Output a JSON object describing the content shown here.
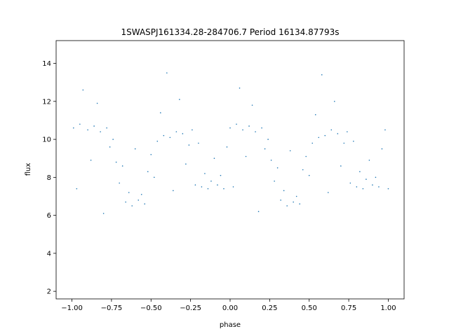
{
  "chart_data": {
    "type": "scatter",
    "title": "1SWASPJ161334.28-284706.7 Period 16134.87793s",
    "xlabel": "phase",
    "ylabel": "flux",
    "xlim": [
      -1.1,
      1.1
    ],
    "ylim": [
      1.6,
      15.2
    ],
    "x_ticks": [
      -1.0,
      -0.75,
      -0.5,
      -0.25,
      0.0,
      0.25,
      0.5,
      0.75,
      1.0
    ],
    "x_tick_labels": [
      "−1.00",
      "−0.75",
      "−0.50",
      "−0.25",
      "0.00",
      "0.25",
      "0.50",
      "0.75",
      "1.00"
    ],
    "y_ticks": [
      2,
      4,
      6,
      8,
      10,
      12,
      14
    ],
    "y_tick_labels": [
      "2",
      "4",
      "6",
      "8",
      "10",
      "12",
      "14"
    ],
    "grid": false,
    "point_color": "#1f77b4",
    "series": [
      {
        "phase_range": [
          -1.0,
          1.0
        ],
        "points": [
          [
            -0.99,
            10.6
          ],
          [
            -0.97,
            7.4
          ],
          [
            -0.95,
            10.8
          ],
          [
            -0.93,
            12.6
          ],
          [
            -0.9,
            10.5
          ],
          [
            -0.88,
            8.9
          ],
          [
            -0.86,
            10.7
          ],
          [
            -0.84,
            11.9
          ],
          [
            -0.82,
            10.4
          ],
          [
            -0.8,
            6.1
          ],
          [
            -0.78,
            10.6
          ],
          [
            -0.76,
            9.6
          ],
          [
            -0.74,
            10.0
          ],
          [
            -0.72,
            8.8
          ],
          [
            -0.7,
            7.7
          ],
          [
            -0.68,
            8.6
          ],
          [
            -0.66,
            6.7
          ],
          [
            -0.64,
            7.2
          ],
          [
            -0.62,
            6.5
          ],
          [
            -0.6,
            9.5
          ],
          [
            -0.58,
            6.8
          ],
          [
            -0.56,
            7.1
          ],
          [
            -0.54,
            6.6
          ],
          [
            -0.52,
            8.3
          ],
          [
            -0.5,
            9.2
          ],
          [
            -0.48,
            8.0
          ],
          [
            -0.46,
            9.9
          ],
          [
            -0.44,
            11.4
          ],
          [
            -0.42,
            10.2
          ],
          [
            -0.4,
            13.5
          ],
          [
            -0.38,
            10.1
          ],
          [
            -0.36,
            7.3
          ],
          [
            -0.34,
            10.4
          ],
          [
            -0.32,
            12.1
          ],
          [
            -0.3,
            10.3
          ],
          [
            -0.28,
            8.7
          ],
          [
            -0.26,
            9.7
          ],
          [
            -0.24,
            10.5
          ],
          [
            -0.22,
            7.6
          ],
          [
            -0.2,
            9.8
          ],
          [
            -0.18,
            7.5
          ],
          [
            -0.16,
            8.2
          ],
          [
            -0.14,
            7.4
          ],
          [
            -0.12,
            7.8
          ],
          [
            -0.1,
            9.0
          ],
          [
            -0.08,
            7.6
          ],
          [
            -0.06,
            8.1
          ],
          [
            -0.04,
            7.4
          ],
          [
            -0.02,
            9.6
          ],
          [
            0.0,
            10.6
          ],
          [
            0.02,
            7.5
          ],
          [
            0.04,
            10.8
          ],
          [
            0.06,
            12.7
          ],
          [
            0.08,
            10.5
          ],
          [
            0.1,
            9.1
          ],
          [
            0.12,
            10.7
          ],
          [
            0.14,
            11.8
          ],
          [
            0.16,
            10.4
          ],
          [
            0.18,
            6.2
          ],
          [
            0.2,
            10.6
          ],
          [
            0.22,
            9.5
          ],
          [
            0.24,
            10.0
          ],
          [
            0.26,
            8.9
          ],
          [
            0.28,
            7.8
          ],
          [
            0.3,
            8.5
          ],
          [
            0.32,
            6.8
          ],
          [
            0.34,
            7.3
          ],
          [
            0.36,
            6.5
          ],
          [
            0.38,
            9.4
          ],
          [
            0.4,
            6.7
          ],
          [
            0.42,
            7.0
          ],
          [
            0.44,
            6.6
          ],
          [
            0.46,
            8.4
          ],
          [
            0.48,
            9.1
          ],
          [
            0.5,
            8.1
          ],
          [
            0.52,
            9.8
          ],
          [
            0.54,
            11.3
          ],
          [
            0.56,
            10.1
          ],
          [
            0.58,
            13.4
          ],
          [
            0.6,
            10.2
          ],
          [
            0.62,
            7.2
          ],
          [
            0.64,
            10.5
          ],
          [
            0.66,
            12.0
          ],
          [
            0.68,
            10.3
          ],
          [
            0.7,
            8.6
          ],
          [
            0.72,
            9.8
          ],
          [
            0.74,
            10.4
          ],
          [
            0.76,
            7.7
          ],
          [
            0.78,
            9.9
          ],
          [
            0.8,
            7.5
          ],
          [
            0.82,
            8.3
          ],
          [
            0.84,
            7.4
          ],
          [
            0.86,
            7.9
          ],
          [
            0.88,
            8.9
          ],
          [
            0.9,
            7.6
          ],
          [
            0.92,
            8.0
          ],
          [
            0.94,
            7.5
          ],
          [
            0.96,
            9.5
          ],
          [
            0.98,
            10.5
          ],
          [
            1.0,
            7.4
          ]
        ]
      }
    ]
  }
}
